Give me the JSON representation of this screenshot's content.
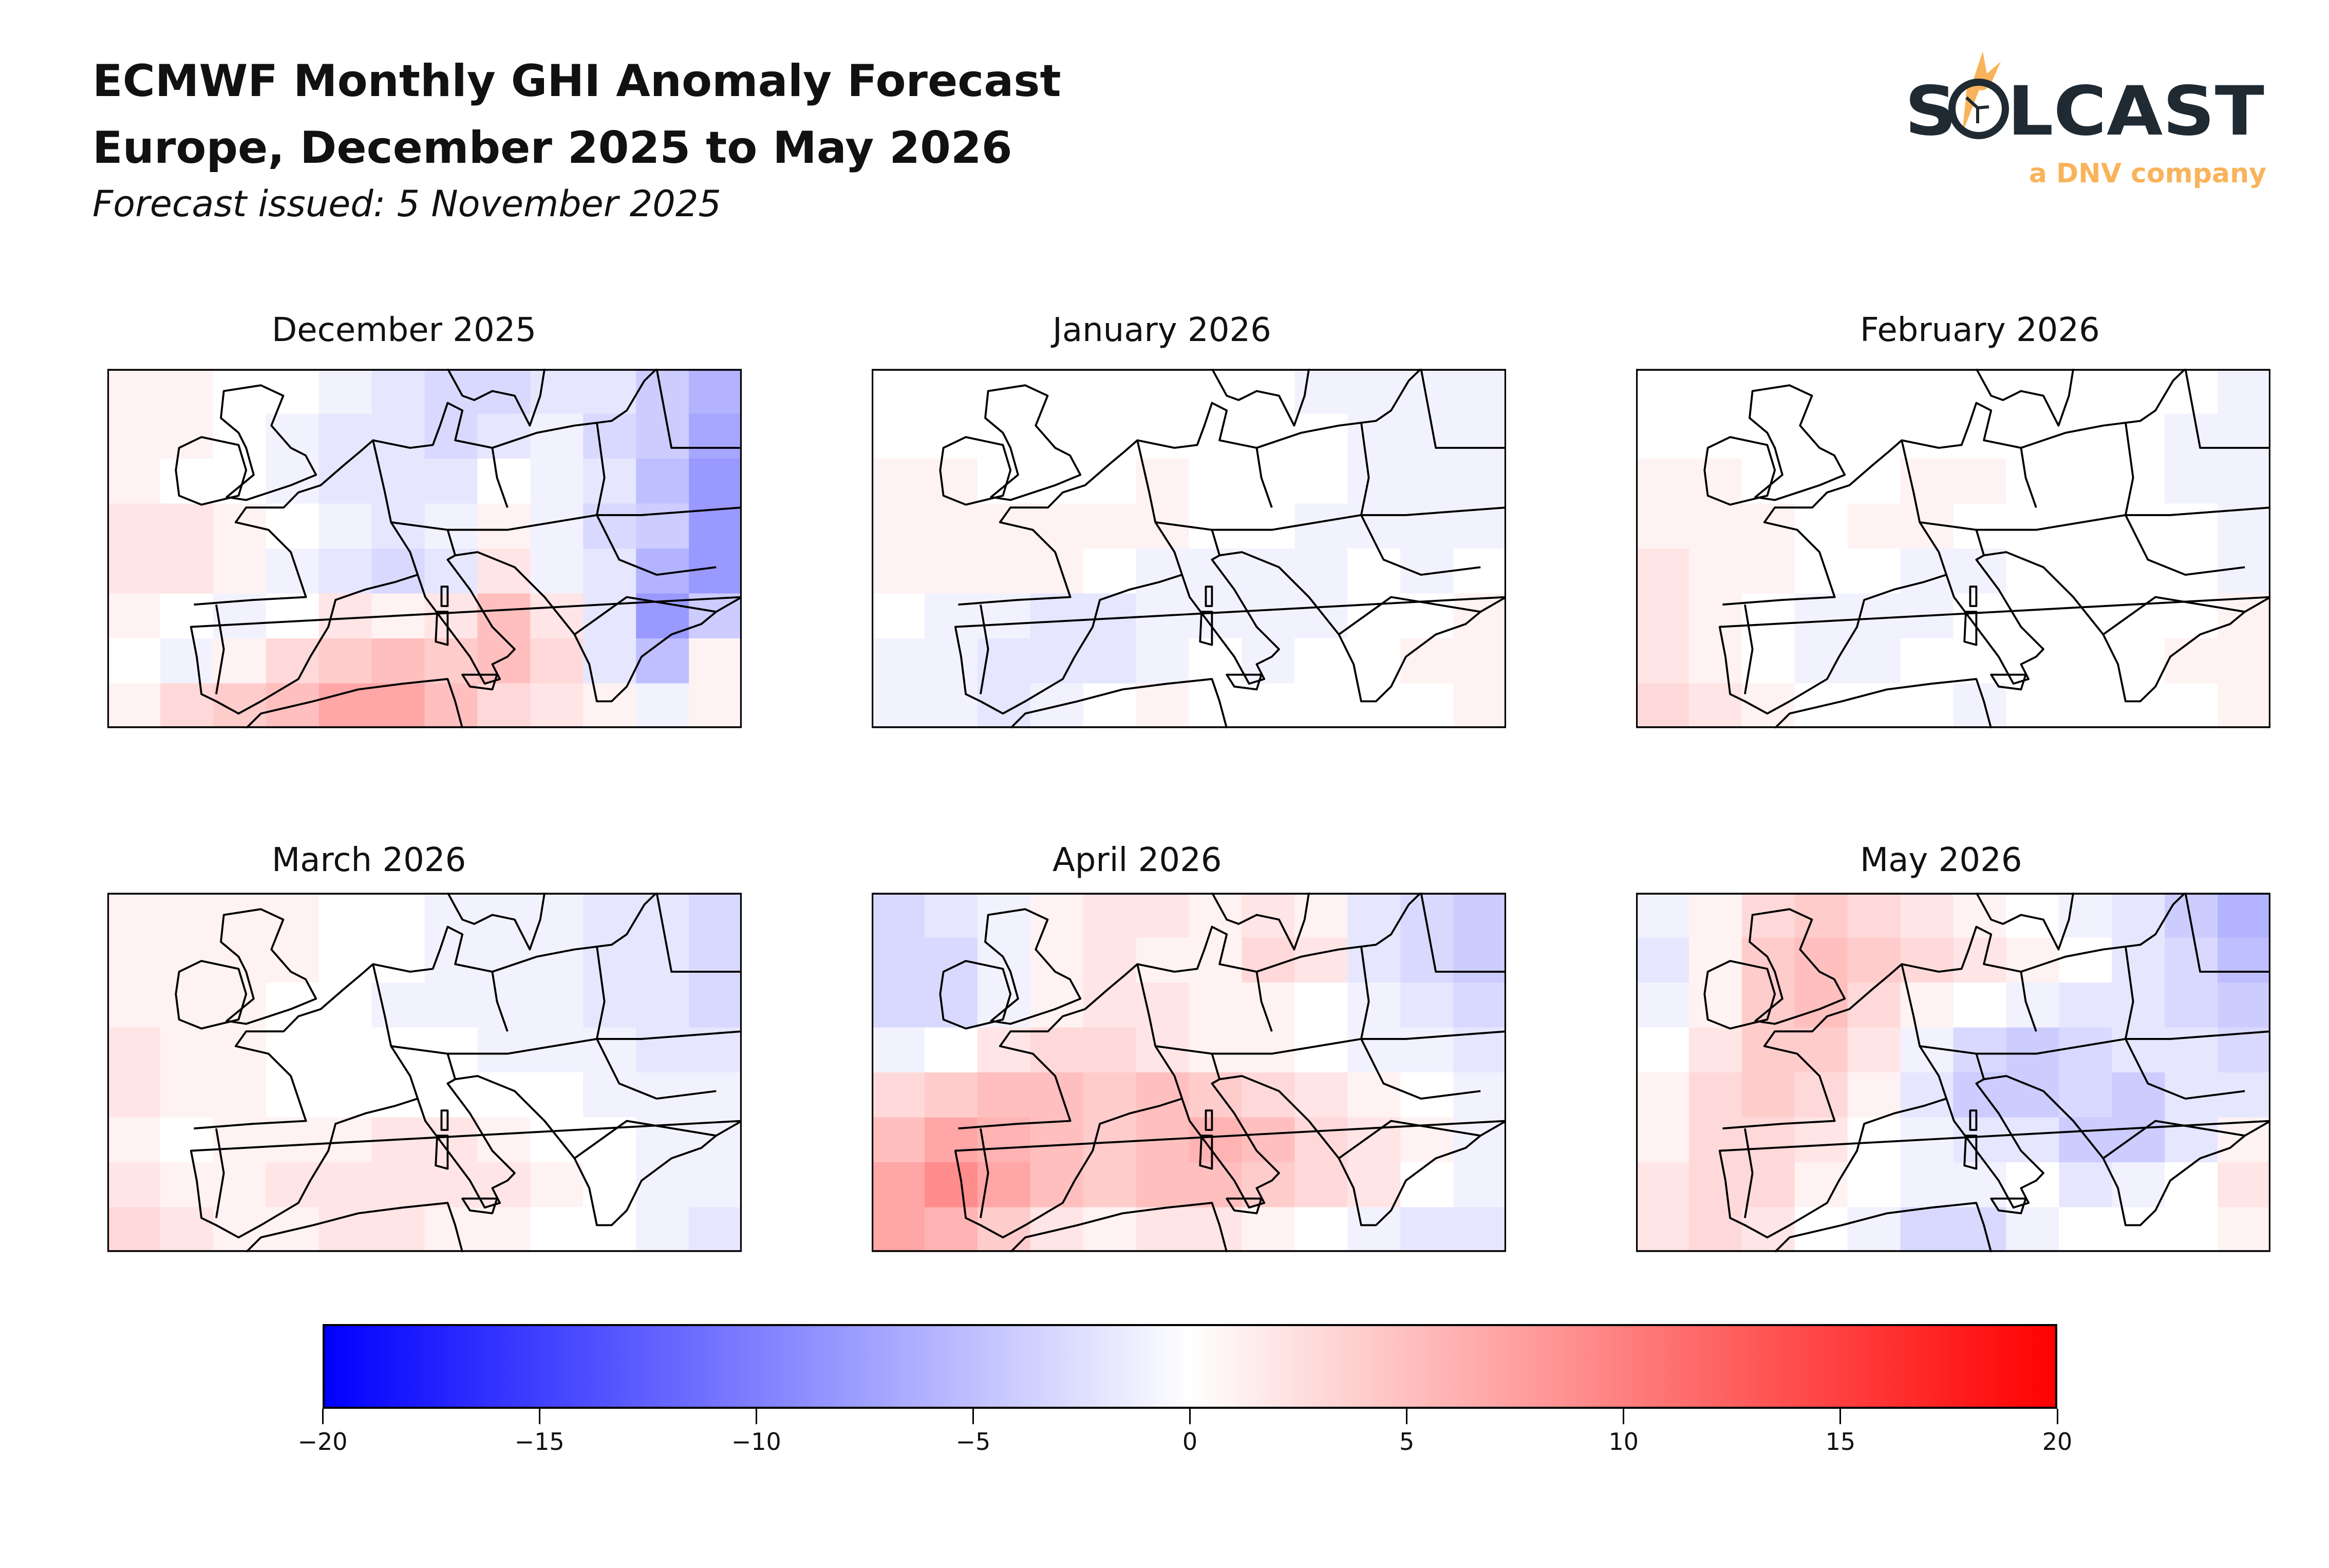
{
  "header": {
    "title_line1": "ECMWF Monthly GHI Anomaly Forecast",
    "title_line2": "Europe, December 2025 to May 2026",
    "subtitle": "Forecast issued: 5 November 2025"
  },
  "logo": {
    "wordmark": "SOLCAST",
    "tagline": "a DNV company",
    "color_dark": "#1f2a33",
    "color_accent": "#f9b35a"
  },
  "chart_data": {
    "type": "heatmap",
    "colormap": "bwr",
    "vmin": -20,
    "vmax": 20,
    "colorbar": {
      "ticks": [
        -20,
        -15,
        -10,
        -5,
        0,
        5,
        10,
        15,
        20
      ],
      "tick_labels": [
        "−20",
        "−15",
        "−10",
        "−5",
        "0",
        "5",
        "10",
        "15",
        "20"
      ],
      "orientation": "horizontal",
      "placement": "bottom"
    },
    "panels": [
      {
        "title": "December 2025",
        "values": [
          [
            1,
            1,
            0,
            0,
            -1,
            -2,
            -3,
            -3,
            -2,
            -2,
            -4,
            -6
          ],
          [
            1,
            1,
            0,
            -1,
            -2,
            -2,
            -3,
            -2,
            -1,
            -3,
            -4,
            -7
          ],
          [
            1,
            0,
            0,
            -1,
            -2,
            -2,
            -2,
            0,
            -1,
            -2,
            -5,
            -8
          ],
          [
            2,
            2,
            1,
            0,
            -1,
            -2,
            -1,
            1,
            -1,
            -3,
            -4,
            -8
          ],
          [
            2,
            2,
            1,
            -1,
            -2,
            -3,
            -2,
            2,
            -1,
            -2,
            -6,
            -8
          ],
          [
            1,
            0,
            -1,
            0,
            2,
            1,
            2,
            5,
            2,
            -2,
            -8,
            -4
          ],
          [
            0,
            -1,
            1,
            3,
            4,
            5,
            4,
            5,
            3,
            -2,
            -5,
            1
          ],
          [
            1,
            3,
            4,
            5,
            7,
            7,
            5,
            3,
            2,
            1,
            -1,
            1
          ]
        ]
      },
      {
        "title": "January 2026",
        "values": [
          [
            0,
            0,
            0,
            0,
            0,
            0,
            0,
            0,
            -1,
            -1,
            -1,
            -1
          ],
          [
            0,
            0,
            0,
            0,
            0,
            0,
            0,
            0,
            0,
            -1,
            -1,
            -1
          ],
          [
            1,
            1,
            0,
            0,
            0,
            1,
            0,
            0,
            0,
            -1,
            -1,
            -1
          ],
          [
            1,
            1,
            1,
            1,
            1,
            1,
            0,
            0,
            -1,
            -1,
            -1,
            -1
          ],
          [
            1,
            1,
            1,
            1,
            0,
            -1,
            -1,
            -1,
            -1,
            0,
            -1,
            0
          ],
          [
            0,
            -1,
            -1,
            -2,
            -2,
            -1,
            -1,
            -1,
            -1,
            0,
            0,
            1
          ],
          [
            -1,
            -1,
            -2,
            -2,
            -2,
            -1,
            0,
            -1,
            0,
            0,
            1,
            1
          ],
          [
            -1,
            -1,
            -2,
            -1,
            0,
            1,
            0,
            0,
            0,
            0,
            0,
            1
          ]
        ]
      },
      {
        "title": "February 2026",
        "values": [
          [
            0,
            0,
            0,
            0,
            0,
            0,
            0,
            0,
            0,
            0,
            0,
            -1
          ],
          [
            0,
            0,
            0,
            0,
            0,
            0,
            0,
            0,
            0,
            0,
            -1,
            -1
          ],
          [
            1,
            1,
            0,
            0,
            0,
            1,
            1,
            0,
            0,
            0,
            -1,
            -1
          ],
          [
            1,
            1,
            1,
            0,
            1,
            1,
            0,
            0,
            0,
            0,
            0,
            -1
          ],
          [
            2,
            1,
            1,
            0,
            0,
            -1,
            -1,
            0,
            0,
            0,
            0,
            -1
          ],
          [
            2,
            1,
            0,
            -1,
            -1,
            -1,
            0,
            0,
            0,
            0,
            0,
            1
          ],
          [
            2,
            1,
            0,
            -1,
            -1,
            0,
            0,
            0,
            0,
            0,
            1,
            1
          ],
          [
            3,
            2,
            1,
            0,
            0,
            0,
            -1,
            0,
            0,
            0,
            0,
            1
          ]
        ]
      },
      {
        "title": "March 2026",
        "values": [
          [
            1,
            1,
            1,
            1,
            0,
            0,
            -1,
            -1,
            -1,
            -2,
            -2,
            -3
          ],
          [
            1,
            1,
            1,
            1,
            0,
            0,
            -1,
            -1,
            -1,
            -2,
            -2,
            -3
          ],
          [
            1,
            1,
            1,
            0,
            0,
            -1,
            -1,
            -1,
            -1,
            -2,
            -2,
            -3
          ],
          [
            2,
            1,
            1,
            0,
            0,
            0,
            0,
            -1,
            -1,
            -1,
            -2,
            -2
          ],
          [
            2,
            1,
            1,
            0,
            0,
            0,
            0,
            0,
            0,
            -1,
            -1,
            -1
          ],
          [
            1,
            0,
            1,
            1,
            1,
            2,
            2,
            1,
            0,
            0,
            -1,
            -1
          ],
          [
            2,
            1,
            1,
            2,
            2,
            2,
            2,
            2,
            1,
            0,
            -1,
            -1
          ],
          [
            3,
            2,
            1,
            1,
            2,
            2,
            1,
            1,
            0,
            0,
            -1,
            -2
          ]
        ]
      },
      {
        "title": "April 2026",
        "values": [
          [
            -3,
            -2,
            -1,
            1,
            2,
            2,
            1,
            2,
            1,
            -2,
            -3,
            -4
          ],
          [
            -3,
            -3,
            -1,
            1,
            2,
            1,
            1,
            3,
            2,
            -2,
            -3,
            -4
          ],
          [
            -3,
            -3,
            -1,
            1,
            2,
            2,
            1,
            1,
            0,
            -1,
            -2,
            -3
          ],
          [
            -1,
            0,
            2,
            3,
            3,
            2,
            1,
            1,
            0,
            -1,
            -1,
            -2
          ],
          [
            3,
            4,
            5,
            5,
            4,
            5,
            4,
            3,
            2,
            1,
            0,
            -1
          ],
          [
            5,
            7,
            6,
            5,
            4,
            5,
            6,
            5,
            3,
            2,
            1,
            -1
          ],
          [
            7,
            9,
            7,
            5,
            4,
            5,
            5,
            4,
            3,
            2,
            0,
            -1
          ],
          [
            7,
            6,
            4,
            2,
            1,
            2,
            2,
            1,
            0,
            -1,
            -2,
            -2
          ]
        ]
      },
      {
        "title": "May 2026",
        "values": [
          [
            -1,
            1,
            3,
            4,
            3,
            2,
            1,
            0,
            -1,
            -2,
            -4,
            -6
          ],
          [
            -2,
            1,
            4,
            5,
            4,
            3,
            2,
            1,
            0,
            -2,
            -3,
            -5
          ],
          [
            -1,
            1,
            4,
            5,
            3,
            1,
            0,
            -1,
            -2,
            -2,
            -3,
            -4
          ],
          [
            0,
            2,
            4,
            4,
            2,
            -1,
            -3,
            -4,
            -3,
            -2,
            -2,
            -3
          ],
          [
            1,
            3,
            4,
            3,
            1,
            -2,
            -4,
            -4,
            -3,
            -4,
            -2,
            -2
          ],
          [
            1,
            3,
            3,
            2,
            0,
            -1,
            -2,
            -2,
            -4,
            -4,
            -2,
            1
          ],
          [
            2,
            3,
            3,
            1,
            0,
            -1,
            -1,
            0,
            -2,
            -1,
            0,
            2
          ],
          [
            2,
            3,
            2,
            0,
            -1,
            -3,
            -3,
            -1,
            0,
            0,
            0,
            1
          ]
        ]
      }
    ]
  }
}
